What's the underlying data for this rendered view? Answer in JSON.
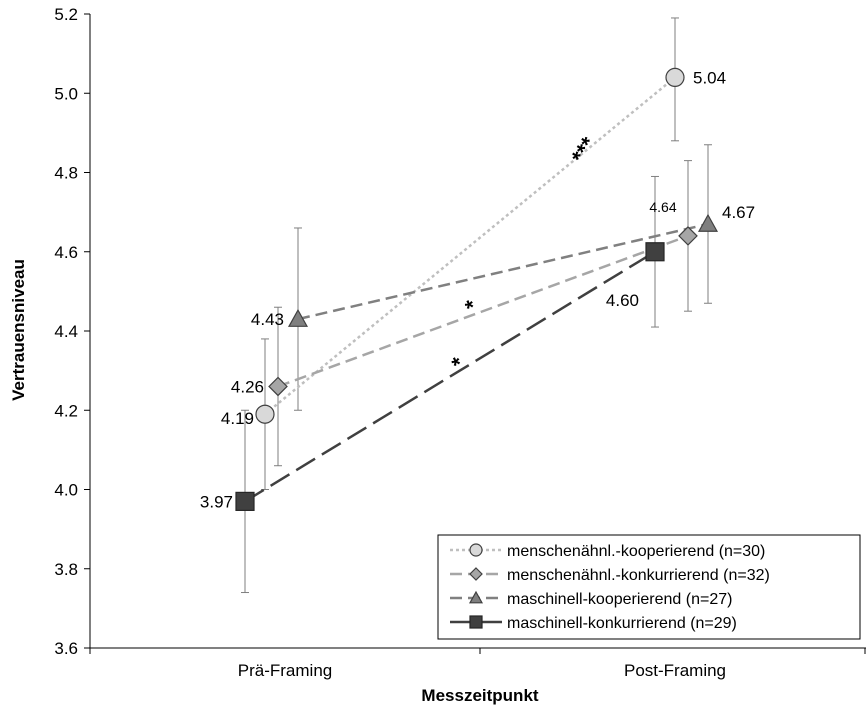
{
  "chart_data": {
    "type": "line",
    "title": "",
    "xlabel": "Messzeitpunkt",
    "ylabel": "Vertrauensniveau",
    "ylim": [
      3.6,
      5.2
    ],
    "yticks": [
      "3.6",
      "3.8",
      "4.0",
      "4.2",
      "4.4",
      "4.6",
      "4.8",
      "5.0",
      "5.2"
    ],
    "categories": [
      "Prä-Framing",
      "Post-Framing"
    ],
    "grid": false,
    "legend_position": "bottom-right",
    "series": [
      {
        "name": "menschenähnl.-kooperierend (n=30)",
        "marker": "circle",
        "line": "dotted",
        "color": "#bfbfbf",
        "marker_fill": "#d9d9d9",
        "values": [
          4.19,
          5.04
        ],
        "labels": [
          "4.19",
          "5.04"
        ],
        "error_low": [
          4.0,
          4.88
        ],
        "error_high": [
          4.38,
          5.19
        ],
        "significance": "***"
      },
      {
        "name": "menschenähnl.-konkurrierend (n=32)",
        "marker": "diamond",
        "line": "dashed",
        "color": "#a6a6a6",
        "marker_fill": "#a6a6a6",
        "values": [
          4.26,
          4.64
        ],
        "labels": [
          "4.26",
          "4.64"
        ],
        "error_low": [
          4.06,
          4.45
        ],
        "error_high": [
          4.46,
          4.83
        ],
        "significance": "*"
      },
      {
        "name": "maschinell-kooperierend (n=27)",
        "marker": "triangle",
        "line": "dashed",
        "color": "#808080",
        "marker_fill": "#7f7f7f",
        "values": [
          4.43,
          4.67
        ],
        "labels": [
          "4.43",
          "4.67"
        ],
        "error_low": [
          4.2,
          4.47
        ],
        "error_high": [
          4.66,
          4.87
        ],
        "significance": ""
      },
      {
        "name": "maschinell-konkurrierend (n=29)",
        "marker": "square",
        "line": "long-dash",
        "color": "#404040",
        "marker_fill": "#404040",
        "values": [
          3.97,
          4.6
        ],
        "labels": [
          "3.97",
          "4.60"
        ],
        "error_low": [
          3.74,
          4.41
        ],
        "error_high": [
          4.2,
          4.79
        ],
        "significance": "*"
      }
    ]
  }
}
